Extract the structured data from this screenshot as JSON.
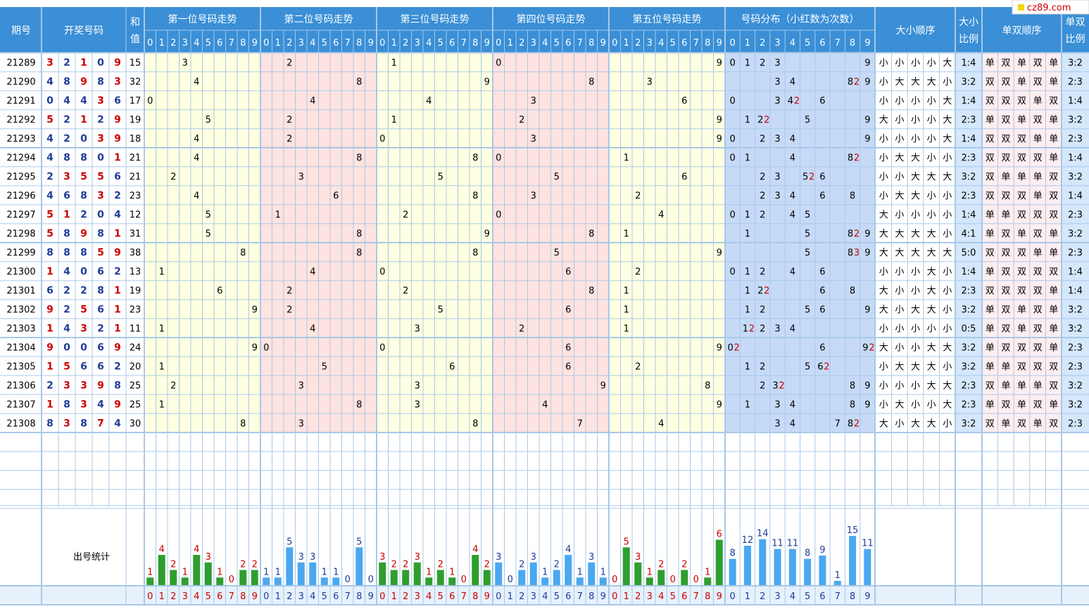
{
  "watermark": "cz89.com",
  "headers": {
    "period": "期号",
    "winning": "开奖号码",
    "sum": "和值",
    "pos_titles": [
      "第一位号码走势",
      "第二位号码走势",
      "第三位号码走势",
      "第四位号码走势",
      "第五位号码走势"
    ],
    "dist": "号码分布（小红数为次数）",
    "size_seq": "大小顺序",
    "size_ratio": "大小比例",
    "parity_seq": "单双顺序",
    "parity_ratio": "单双比例"
  },
  "digits_labels": [
    "0",
    "1",
    "2",
    "3",
    "4",
    "5",
    "6",
    "7",
    "8",
    "9"
  ],
  "stat_label": "出号统计",
  "labels": {
    "small": "小",
    "big": "大",
    "odd": "单",
    "even": "双"
  },
  "colors": {
    "header_bg": "#3a8fd6",
    "pos_odd_bg": "#ffffe1",
    "pos_even_bg": "#ffe3e0",
    "dist_bg": "#c6daf8",
    "ratio_bg": "#d4e7fb",
    "seq_bg": "#ffffff",
    "grid": "#a8c8e8",
    "digit_blue": "#1f3c99",
    "digit_red": "#cc0000",
    "bar_green": "#2e9e2e",
    "bar_blue": "#4aa8f0",
    "count_red": "#cc0000",
    "count_blue": "#1f3c99"
  },
  "rows": [
    {
      "period": "21289",
      "nums": [
        3,
        2,
        1,
        0,
        9
      ],
      "sum": "15",
      "size": [
        "小",
        "小",
        "小",
        "小",
        "大"
      ],
      "size_ratio": "1:4",
      "parity": [
        "单",
        "双",
        "单",
        "双",
        "单"
      ],
      "parity_ratio": "3:2"
    },
    {
      "period": "21290",
      "nums": [
        4,
        8,
        9,
        8,
        3
      ],
      "sum": "32",
      "size": [
        "小",
        "大",
        "大",
        "大",
        "小"
      ],
      "size_ratio": "3:2",
      "parity": [
        "双",
        "双",
        "单",
        "双",
        "单"
      ],
      "parity_ratio": "2:3"
    },
    {
      "period": "21291",
      "nums": [
        0,
        4,
        4,
        3,
        6
      ],
      "sum": "17",
      "size": [
        "小",
        "小",
        "小",
        "小",
        "大"
      ],
      "size_ratio": "1:4",
      "parity": [
        "双",
        "双",
        "双",
        "单",
        "双"
      ],
      "parity_ratio": "1:4"
    },
    {
      "period": "21292",
      "nums": [
        5,
        2,
        1,
        2,
        9
      ],
      "sum": "19",
      "size": [
        "大",
        "小",
        "小",
        "小",
        "大"
      ],
      "size_ratio": "2:3",
      "parity": [
        "单",
        "双",
        "单",
        "双",
        "单"
      ],
      "parity_ratio": "3:2"
    },
    {
      "period": "21293",
      "nums": [
        4,
        2,
        0,
        3,
        9
      ],
      "sum": "18",
      "size": [
        "小",
        "小",
        "小",
        "小",
        "大"
      ],
      "size_ratio": "1:4",
      "parity": [
        "双",
        "双",
        "双",
        "单",
        "单"
      ],
      "parity_ratio": "2:3"
    },
    {
      "period": "21294",
      "nums": [
        4,
        8,
        8,
        0,
        1
      ],
      "sum": "21",
      "size": [
        "小",
        "大",
        "大",
        "小",
        "小"
      ],
      "size_ratio": "2:3",
      "parity": [
        "双",
        "双",
        "双",
        "双",
        "单"
      ],
      "parity_ratio": "1:4"
    },
    {
      "period": "21295",
      "nums": [
        2,
        3,
        5,
        5,
        6
      ],
      "sum": "21",
      "size": [
        "小",
        "小",
        "大",
        "大",
        "大"
      ],
      "size_ratio": "3:2",
      "parity": [
        "双",
        "单",
        "单",
        "单",
        "双"
      ],
      "parity_ratio": "3:2"
    },
    {
      "period": "21296",
      "nums": [
        4,
        6,
        8,
        3,
        2
      ],
      "sum": "23",
      "size": [
        "小",
        "大",
        "大",
        "小",
        "小"
      ],
      "size_ratio": "2:3",
      "parity": [
        "双",
        "双",
        "双",
        "单",
        "双"
      ],
      "parity_ratio": "1:4"
    },
    {
      "period": "21297",
      "nums": [
        5,
        1,
        2,
        0,
        4
      ],
      "sum": "12",
      "size": [
        "大",
        "小",
        "小",
        "小",
        "小"
      ],
      "size_ratio": "1:4",
      "parity": [
        "单",
        "单",
        "双",
        "双",
        "双"
      ],
      "parity_ratio": "2:3"
    },
    {
      "period": "21298",
      "nums": [
        5,
        8,
        9,
        8,
        1
      ],
      "sum": "31",
      "size": [
        "大",
        "大",
        "大",
        "大",
        "小"
      ],
      "size_ratio": "4:1",
      "parity": [
        "单",
        "双",
        "单",
        "双",
        "单"
      ],
      "parity_ratio": "3:2"
    },
    {
      "period": "21299",
      "nums": [
        8,
        8,
        8,
        5,
        9
      ],
      "sum": "38",
      "size": [
        "大",
        "大",
        "大",
        "大",
        "大"
      ],
      "size_ratio": "5:0",
      "parity": [
        "双",
        "双",
        "双",
        "单",
        "单"
      ],
      "parity_ratio": "2:3"
    },
    {
      "period": "21300",
      "nums": [
        1,
        4,
        0,
        6,
        2
      ],
      "sum": "13",
      "size": [
        "小",
        "小",
        "小",
        "大",
        "小"
      ],
      "size_ratio": "1:4",
      "parity": [
        "单",
        "双",
        "双",
        "双",
        "双"
      ],
      "parity_ratio": "1:4"
    },
    {
      "period": "21301",
      "nums": [
        6,
        2,
        2,
        8,
        1
      ],
      "sum": "19",
      "size": [
        "大",
        "小",
        "小",
        "大",
        "小"
      ],
      "size_ratio": "2:3",
      "parity": [
        "双",
        "双",
        "双",
        "双",
        "单"
      ],
      "parity_ratio": "1:4"
    },
    {
      "period": "21302",
      "nums": [
        9,
        2,
        5,
        6,
        1
      ],
      "sum": "23",
      "size": [
        "大",
        "小",
        "大",
        "大",
        "小"
      ],
      "size_ratio": "3:2",
      "parity": [
        "单",
        "双",
        "单",
        "双",
        "单"
      ],
      "parity_ratio": "3:2"
    },
    {
      "period": "21303",
      "nums": [
        1,
        4,
        3,
        2,
        1
      ],
      "sum": "11",
      "size": [
        "小",
        "小",
        "小",
        "小",
        "小"
      ],
      "size_ratio": "0:5",
      "parity": [
        "单",
        "双",
        "单",
        "双",
        "单"
      ],
      "parity_ratio": "3:2"
    },
    {
      "period": "21304",
      "nums": [
        9,
        0,
        0,
        6,
        9
      ],
      "sum": "24",
      "size": [
        "大",
        "小",
        "小",
        "大",
        "大"
      ],
      "size_ratio": "3:2",
      "parity": [
        "单",
        "双",
        "双",
        "双",
        "单"
      ],
      "parity_ratio": "2:3"
    },
    {
      "period": "21305",
      "nums": [
        1,
        5,
        6,
        6,
        2
      ],
      "sum": "20",
      "size": [
        "小",
        "大",
        "大",
        "大",
        "小"
      ],
      "size_ratio": "3:2",
      "parity": [
        "单",
        "单",
        "双",
        "双",
        "双"
      ],
      "parity_ratio": "2:3"
    },
    {
      "period": "21306",
      "nums": [
        2,
        3,
        3,
        9,
        8
      ],
      "sum": "25",
      "size": [
        "小",
        "小",
        "小",
        "大",
        "大"
      ],
      "size_ratio": "2:3",
      "parity": [
        "双",
        "单",
        "单",
        "单",
        "双"
      ],
      "parity_ratio": "3:2"
    },
    {
      "period": "21307",
      "nums": [
        1,
        8,
        3,
        4,
        9
      ],
      "sum": "25",
      "size": [
        "小",
        "大",
        "小",
        "小",
        "大"
      ],
      "size_ratio": "2:3",
      "parity": [
        "单",
        "双",
        "单",
        "双",
        "单"
      ],
      "parity_ratio": "3:2"
    },
    {
      "period": "21308",
      "nums": [
        8,
        3,
        8,
        7,
        4
      ],
      "sum": "30",
      "size": [
        "大",
        "小",
        "大",
        "大",
        "小"
      ],
      "size_ratio": "3:2",
      "parity": [
        "双",
        "单",
        "双",
        "单",
        "双"
      ],
      "parity_ratio": "2:3"
    }
  ],
  "chart_data": {
    "type": "bar",
    "categories": [
      "0",
      "1",
      "2",
      "3",
      "4",
      "5",
      "6",
      "7",
      "8",
      "9"
    ],
    "series": [
      {
        "values": [
          1,
          4,
          2,
          1,
          4,
          3,
          1,
          0,
          2,
          2
        ]
      },
      {
        "values": [
          1,
          1,
          5,
          3,
          3,
          1,
          1,
          0,
          5,
          0
        ]
      },
      {
        "values": [
          3,
          2,
          2,
          3,
          1,
          2,
          1,
          0,
          4,
          2
        ]
      },
      {
        "values": [
          3,
          0,
          2,
          3,
          1,
          2,
          4,
          1,
          3,
          1
        ]
      },
      {
        "values": [
          0,
          5,
          3,
          1,
          2,
          0,
          2,
          0,
          1,
          6
        ]
      },
      {
        "values": [
          8,
          12,
          14,
          11,
          11,
          8,
          9,
          1,
          15,
          11
        ]
      }
    ]
  }
}
